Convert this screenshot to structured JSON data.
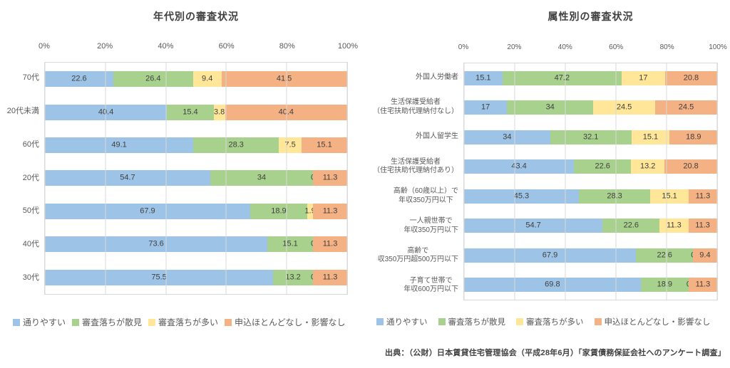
{
  "page": {
    "background": "#ffffff"
  },
  "source_note": "出典：（公財）日本賃貸住宅管理協会（平成28年6月）「家賃債務保証会社へのアンケート調査」",
  "colors": {
    "pass_easy": "#9DC3E6",
    "fail_sporadic": "#A9D18E",
    "fail_many": "#FFE699",
    "no_application": "#F4B183",
    "gridline": "#D9D9D9",
    "data_label": "#404040",
    "axis_text": "#595959"
  },
  "chart_data": [
    {
      "type": "bar",
      "orientation": "horizontal",
      "stacked": true,
      "title": "年代別の審査状況",
      "xlim": [
        0,
        100
      ],
      "x_ticks": [
        "0%",
        "20%",
        "40%",
        "60%",
        "80%",
        "100%"
      ],
      "grid": true,
      "legend_position": "bottom",
      "categories": [
        "70代",
        "20代未満",
        "60代",
        "20代",
        "50代",
        "40代",
        "30代"
      ],
      "series": [
        {
          "name": "通りやすい",
          "color": "#9DC3E6",
          "values": [
            22.6,
            40.4,
            49.1,
            54.7,
            67.9,
            73.6,
            75.5
          ]
        },
        {
          "name": "審査落ちが散見",
          "color": "#A9D18E",
          "values": [
            26.4,
            15.4,
            28.3,
            34,
            18.9,
            15.1,
            13.2
          ]
        },
        {
          "name": "審査落ちが多い",
          "color": "#FFE699",
          "values": [
            9.4,
            3.8,
            7.5,
            0,
            1.9,
            0,
            0
          ]
        },
        {
          "name": "申込ほとんどなし・影響なし",
          "color": "#F4B183",
          "values": [
            41.5,
            40.4,
            15.1,
            11.3,
            11.3,
            11.3,
            11.3
          ]
        }
      ]
    },
    {
      "type": "bar",
      "orientation": "horizontal",
      "stacked": true,
      "title": "属性別の審査状況",
      "xlim": [
        0,
        100
      ],
      "x_ticks": [
        "0%",
        "20%",
        "40%",
        "60%",
        "80%",
        "100%"
      ],
      "grid": true,
      "legend_position": "bottom",
      "categories": [
        [
          "外国人労働者"
        ],
        [
          "生活保護受給者",
          "（住宅扶助代理納付なし）"
        ],
        [
          "外国人留学生"
        ],
        [
          "生活保護受給者",
          "（住宅扶助代理納付あり）"
        ],
        [
          "高齢（60歳以上）で",
          "年収350万円以下"
        ],
        [
          "一人親世帯で",
          "年収350万円以下"
        ],
        [
          "高齢で",
          "収350万円超500万円以下"
        ],
        [
          "子育て世帯で",
          "年収600万円以下"
        ]
      ],
      "series": [
        {
          "name": "通りやすい",
          "color": "#9DC3E6",
          "values": [
            15.1,
            17,
            34,
            43.4,
            45.3,
            54.7,
            67.9,
            69.8
          ]
        },
        {
          "name": "審査落ちが散見",
          "color": "#A9D18E",
          "values": [
            47.2,
            34,
            32.1,
            22.6,
            28.3,
            22.6,
            22.6,
            18.9
          ]
        },
        {
          "name": "審査落ちが多い",
          "color": "#FFE699",
          "values": [
            17,
            24.5,
            15.1,
            13.2,
            15.1,
            11.3,
            0,
            0
          ]
        },
        {
          "name": "申込ほとんどなし・影響なし",
          "color": "#F4B183",
          "values": [
            20.8,
            24.5,
            18.9,
            20.8,
            11.3,
            11.3,
            9.4,
            11.3
          ]
        }
      ]
    }
  ]
}
